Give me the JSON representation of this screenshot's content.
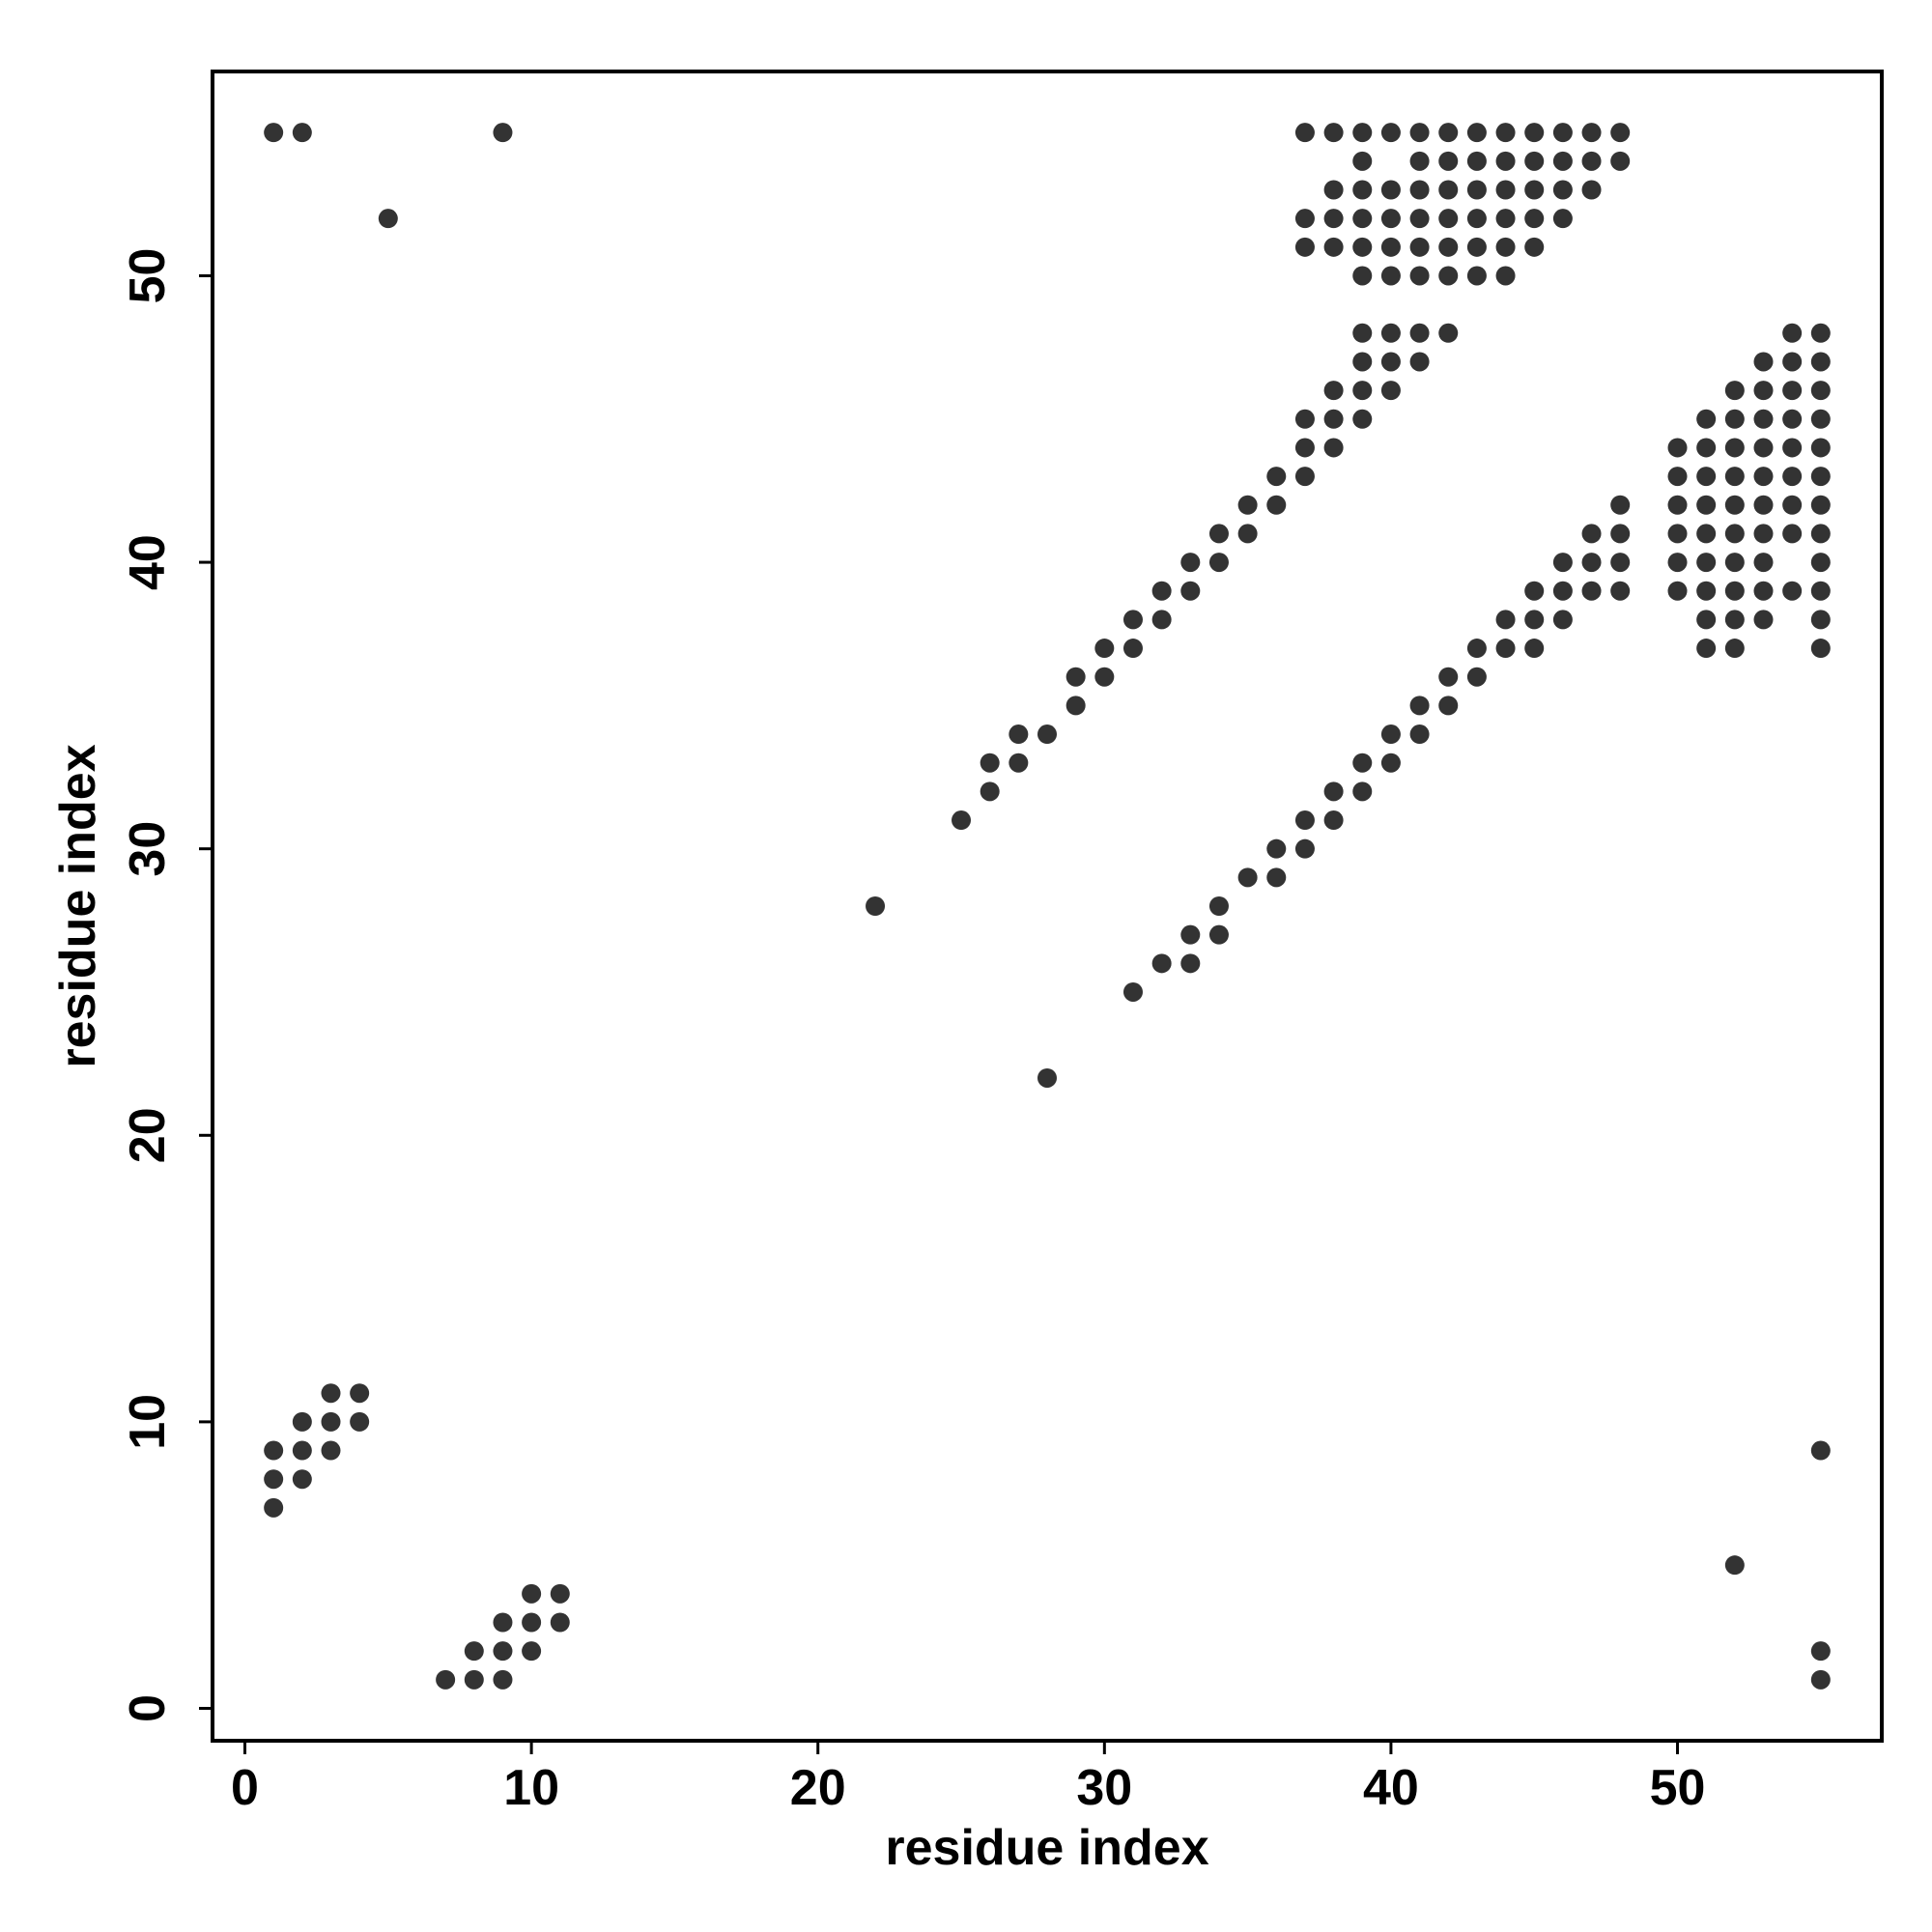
{
  "chart_data": {
    "type": "scatter",
    "x_label": "residue index",
    "y_label": "residue index",
    "xlim": [
      -1.13,
      57.13
    ],
    "ylim": [
      -1.13,
      57.13
    ],
    "xticks": [
      0,
      10,
      20,
      30,
      40,
      50
    ],
    "yticks": [
      0,
      10,
      20,
      30,
      40,
      50
    ],
    "series": [
      {
        "color": "#333333",
        "x": [
          1,
          2,
          9,
          37,
          38,
          39,
          40,
          41,
          42,
          43,
          44,
          45,
          46,
          47,
          48,
          39,
          41,
          42,
          43,
          44,
          45,
          46,
          47,
          48,
          38,
          39,
          40,
          41,
          42,
          43,
          44,
          45,
          46,
          47,
          5,
          37,
          38,
          39,
          40,
          41,
          42,
          43,
          44,
          45,
          46,
          37,
          38,
          39,
          40,
          41,
          42,
          43,
          44,
          45,
          39,
          40,
          41,
          42,
          43,
          44,
          39,
          40,
          41,
          42,
          54,
          55,
          39,
          40,
          41,
          53,
          54,
          55,
          38,
          39,
          40,
          52,
          53,
          54,
          55,
          37,
          38,
          39,
          51,
          52,
          53,
          54,
          55,
          37,
          38,
          50,
          51,
          52,
          53,
          54,
          55,
          36,
          37,
          50,
          51,
          52,
          53,
          54,
          55,
          35,
          36,
          48,
          50,
          51,
          52,
          53,
          54,
          55,
          34,
          35,
          47,
          48,
          50,
          51,
          52,
          53,
          54,
          55,
          33,
          34,
          46,
          47,
          48,
          50,
          51,
          52,
          53,
          55,
          32,
          33,
          45,
          46,
          47,
          48,
          50,
          51,
          52,
          53,
          54,
          55,
          31,
          32,
          44,
          45,
          46,
          51,
          52,
          53,
          55,
          30,
          31,
          43,
          44,
          45,
          51,
          52,
          55,
          29,
          30,
          42,
          43,
          29,
          41,
          42,
          27,
          28,
          40,
          41,
          26,
          27,
          39,
          40,
          26,
          38,
          39,
          25,
          37,
          38,
          36,
          37,
          35,
          36,
          22,
          34,
          33,
          34,
          32,
          33,
          31,
          28,
          3,
          4,
          2,
          3,
          4,
          1,
          2,
          3,
          55,
          1,
          2,
          1,
          52,
          10,
          11,
          9,
          10,
          11,
          8,
          9,
          10,
          55,
          7,
          8,
          9,
          55
        ],
        "values": [
          55,
          55,
          55,
          55,
          55,
          55,
          55,
          55,
          55,
          55,
          55,
          55,
          55,
          55,
          55,
          54,
          54,
          54,
          54,
          54,
          54,
          54,
          54,
          54,
          53,
          53,
          53,
          53,
          53,
          53,
          53,
          53,
          53,
          53,
          52,
          52,
          52,
          52,
          52,
          52,
          52,
          52,
          52,
          52,
          52,
          51,
          51,
          51,
          51,
          51,
          51,
          51,
          51,
          51,
          50,
          50,
          50,
          50,
          50,
          50,
          48,
          48,
          48,
          48,
          48,
          48,
          47,
          47,
          47,
          47,
          47,
          47,
          46,
          46,
          46,
          46,
          46,
          46,
          46,
          45,
          45,
          45,
          45,
          45,
          45,
          45,
          45,
          44,
          44,
          44,
          44,
          44,
          44,
          44,
          44,
          43,
          43,
          43,
          43,
          43,
          43,
          43,
          43,
          42,
          42,
          42,
          42,
          42,
          42,
          42,
          42,
          42,
          41,
          41,
          41,
          41,
          41,
          41,
          41,
          41,
          41,
          41,
          40,
          40,
          40,
          40,
          40,
          40,
          40,
          40,
          40,
          40,
          39,
          39,
          39,
          39,
          39,
          39,
          39,
          39,
          39,
          39,
          39,
          39,
          38,
          38,
          38,
          38,
          38,
          38,
          38,
          38,
          38,
          37,
          37,
          37,
          37,
          37,
          37,
          37,
          37,
          36,
          36,
          36,
          36,
          35,
          35,
          35,
          34,
          34,
          34,
          34,
          33,
          33,
          33,
          33,
          32,
          32,
          32,
          31,
          31,
          31,
          30,
          30,
          29,
          29,
          28,
          28,
          27,
          27,
          26,
          26,
          25,
          22,
          11,
          11,
          10,
          10,
          10,
          9,
          9,
          9,
          9,
          8,
          8,
          7,
          5,
          4,
          4,
          3,
          3,
          3,
          2,
          2,
          2,
          2,
          1,
          1,
          1,
          1
        ]
      }
    ]
  }
}
